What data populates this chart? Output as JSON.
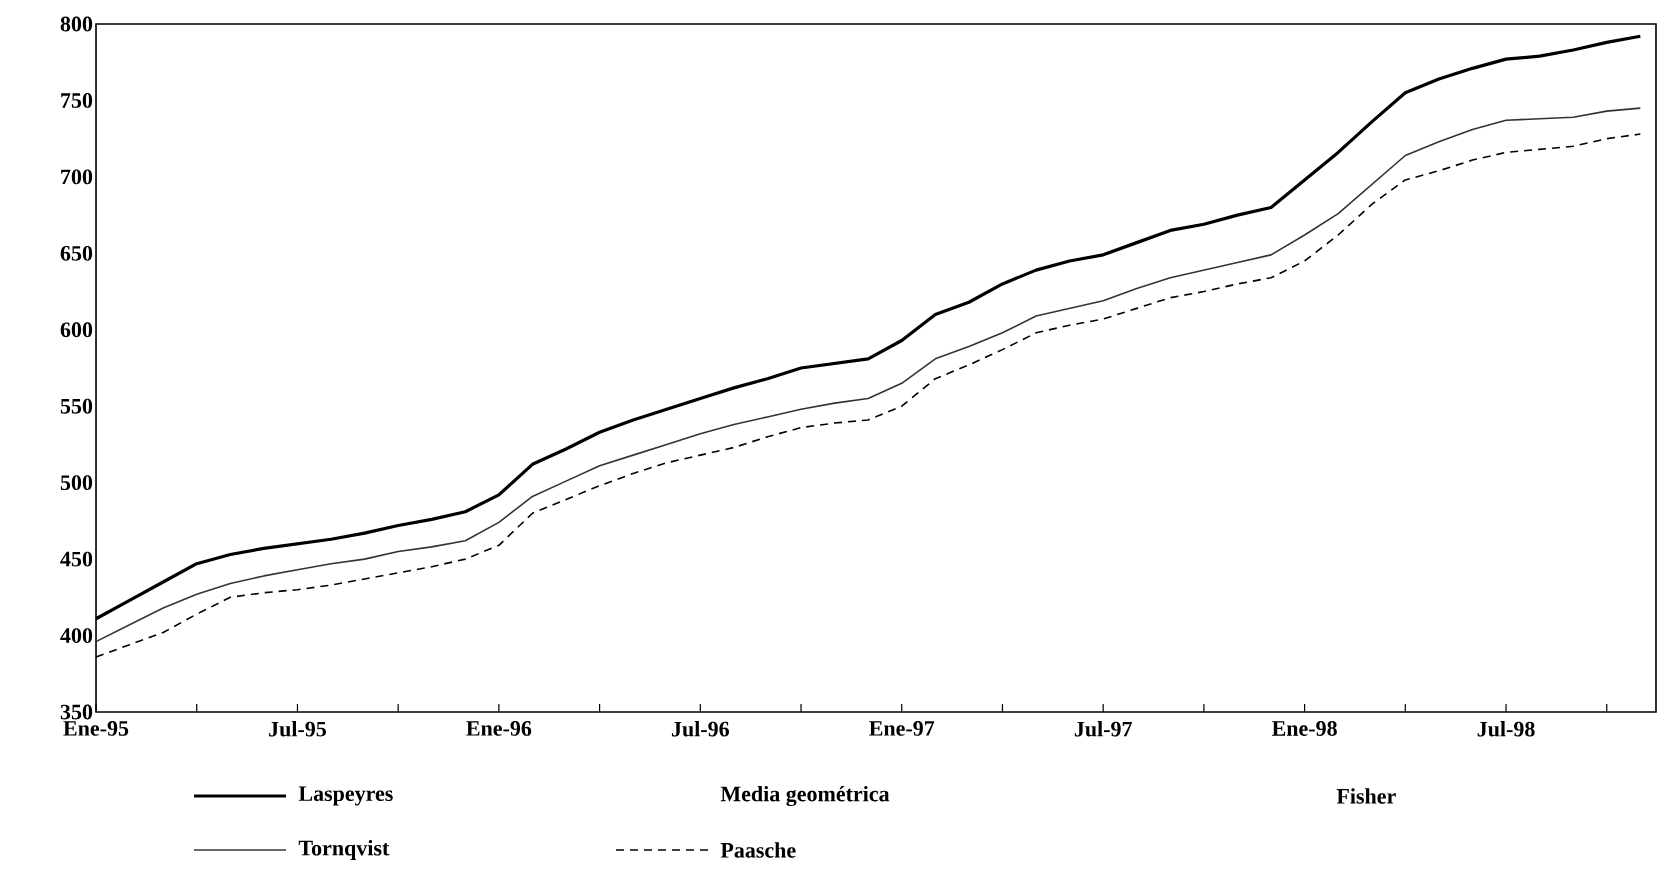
{
  "chart_data": {
    "type": "line",
    "x": [
      "1995-01",
      "1995-02",
      "1995-03",
      "1995-04",
      "1995-05",
      "1995-06",
      "1995-07",
      "1995-08",
      "1995-09",
      "1995-10",
      "1995-11",
      "1995-12",
      "1996-01",
      "1996-02",
      "1996-03",
      "1996-04",
      "1996-05",
      "1996-06",
      "1996-07",
      "1996-08",
      "1996-09",
      "1996-10",
      "1996-11",
      "1996-12",
      "1997-01",
      "1997-02",
      "1997-03",
      "1997-04",
      "1997-05",
      "1997-06",
      "1997-07",
      "1997-08",
      "1997-09",
      "1997-10",
      "1997-11",
      "1997-12",
      "1998-01",
      "1998-02",
      "1998-03",
      "1998-04",
      "1998-05",
      "1998-06",
      "1998-07",
      "1998-08",
      "1998-09",
      "1998-10",
      "1998-11"
    ],
    "series": [
      {
        "name": "Laspeyres",
        "color": "#000000",
        "line_style": "solid",
        "values": [
          411,
          423,
          435,
          447,
          453,
          457,
          460,
          463,
          467,
          472,
          476,
          481,
          492,
          512,
          522,
          533,
          541,
          548,
          555,
          562,
          568,
          575,
          578,
          581,
          593,
          610,
          618,
          630,
          639,
          645,
          649,
          657,
          665,
          669,
          675,
          680,
          698,
          716,
          736,
          755,
          764,
          771,
          777,
          779,
          783,
          788,
          792
        ]
      },
      {
        "name": "Tornqvist",
        "color": "#333333",
        "line_style": "solid",
        "values": [
          396,
          407,
          418,
          427,
          434,
          439,
          443,
          447,
          450,
          455,
          458,
          462,
          474,
          491,
          501,
          511,
          518,
          525,
          532,
          538,
          543,
          548,
          552,
          555,
          565,
          581,
          589,
          598,
          609,
          614,
          619,
          627,
          634,
          639,
          644,
          649,
          662,
          676,
          695,
          714,
          723,
          731,
          737,
          738,
          739,
          743,
          745
        ]
      },
      {
        "name": "Paasche",
        "color": "#000000",
        "line_style": "dashed",
        "values": [
          386,
          394,
          402,
          414,
          425,
          428,
          430,
          433,
          437,
          441,
          445,
          450,
          459,
          480,
          489,
          498,
          506,
          513,
          518,
          523,
          530,
          536,
          539,
          541,
          550,
          568,
          577,
          587,
          598,
          603,
          607,
          614,
          621,
          625,
          630,
          634,
          645,
          662,
          682,
          698,
          704,
          711,
          716,
          718,
          720,
          725,
          728
        ]
      }
    ],
    "xlim": [
      "1995-01",
      "1998-11-15"
    ],
    "xticks": [
      {
        "value": "1995-01",
        "label": "Ene-95"
      },
      {
        "value": "1995-04",
        "label": null
      },
      {
        "value": "1995-07",
        "label": "Jul-95"
      },
      {
        "value": "1995-10",
        "label": null
      },
      {
        "value": "1996-01",
        "label": "Ene-96"
      },
      {
        "value": "1996-04",
        "label": null
      },
      {
        "value": "1996-07",
        "label": "Jul-96"
      },
      {
        "value": "1996-10",
        "label": null
      },
      {
        "value": "1997-01",
        "label": "Ene-97"
      },
      {
        "value": "1997-04",
        "label": null
      },
      {
        "value": "1997-07",
        "label": "Jul-97"
      },
      {
        "value": "1997-10",
        "label": null
      },
      {
        "value": "1998-01",
        "label": "Ene-98"
      },
      {
        "value": "1998-04",
        "label": null
      },
      {
        "value": "1998-07",
        "label": "Jul-98"
      },
      {
        "value": "1998-10",
        "label": null
      }
    ],
    "ylim": [
      350,
      800
    ],
    "yticks": [
      350,
      400,
      450,
      500,
      550,
      600,
      650,
      700,
      750,
      800
    ],
    "legend": "bottom",
    "grid": false,
    "marker": "none",
    "annotations": [
      "Media geométrica",
      "Fisher"
    ]
  }
}
